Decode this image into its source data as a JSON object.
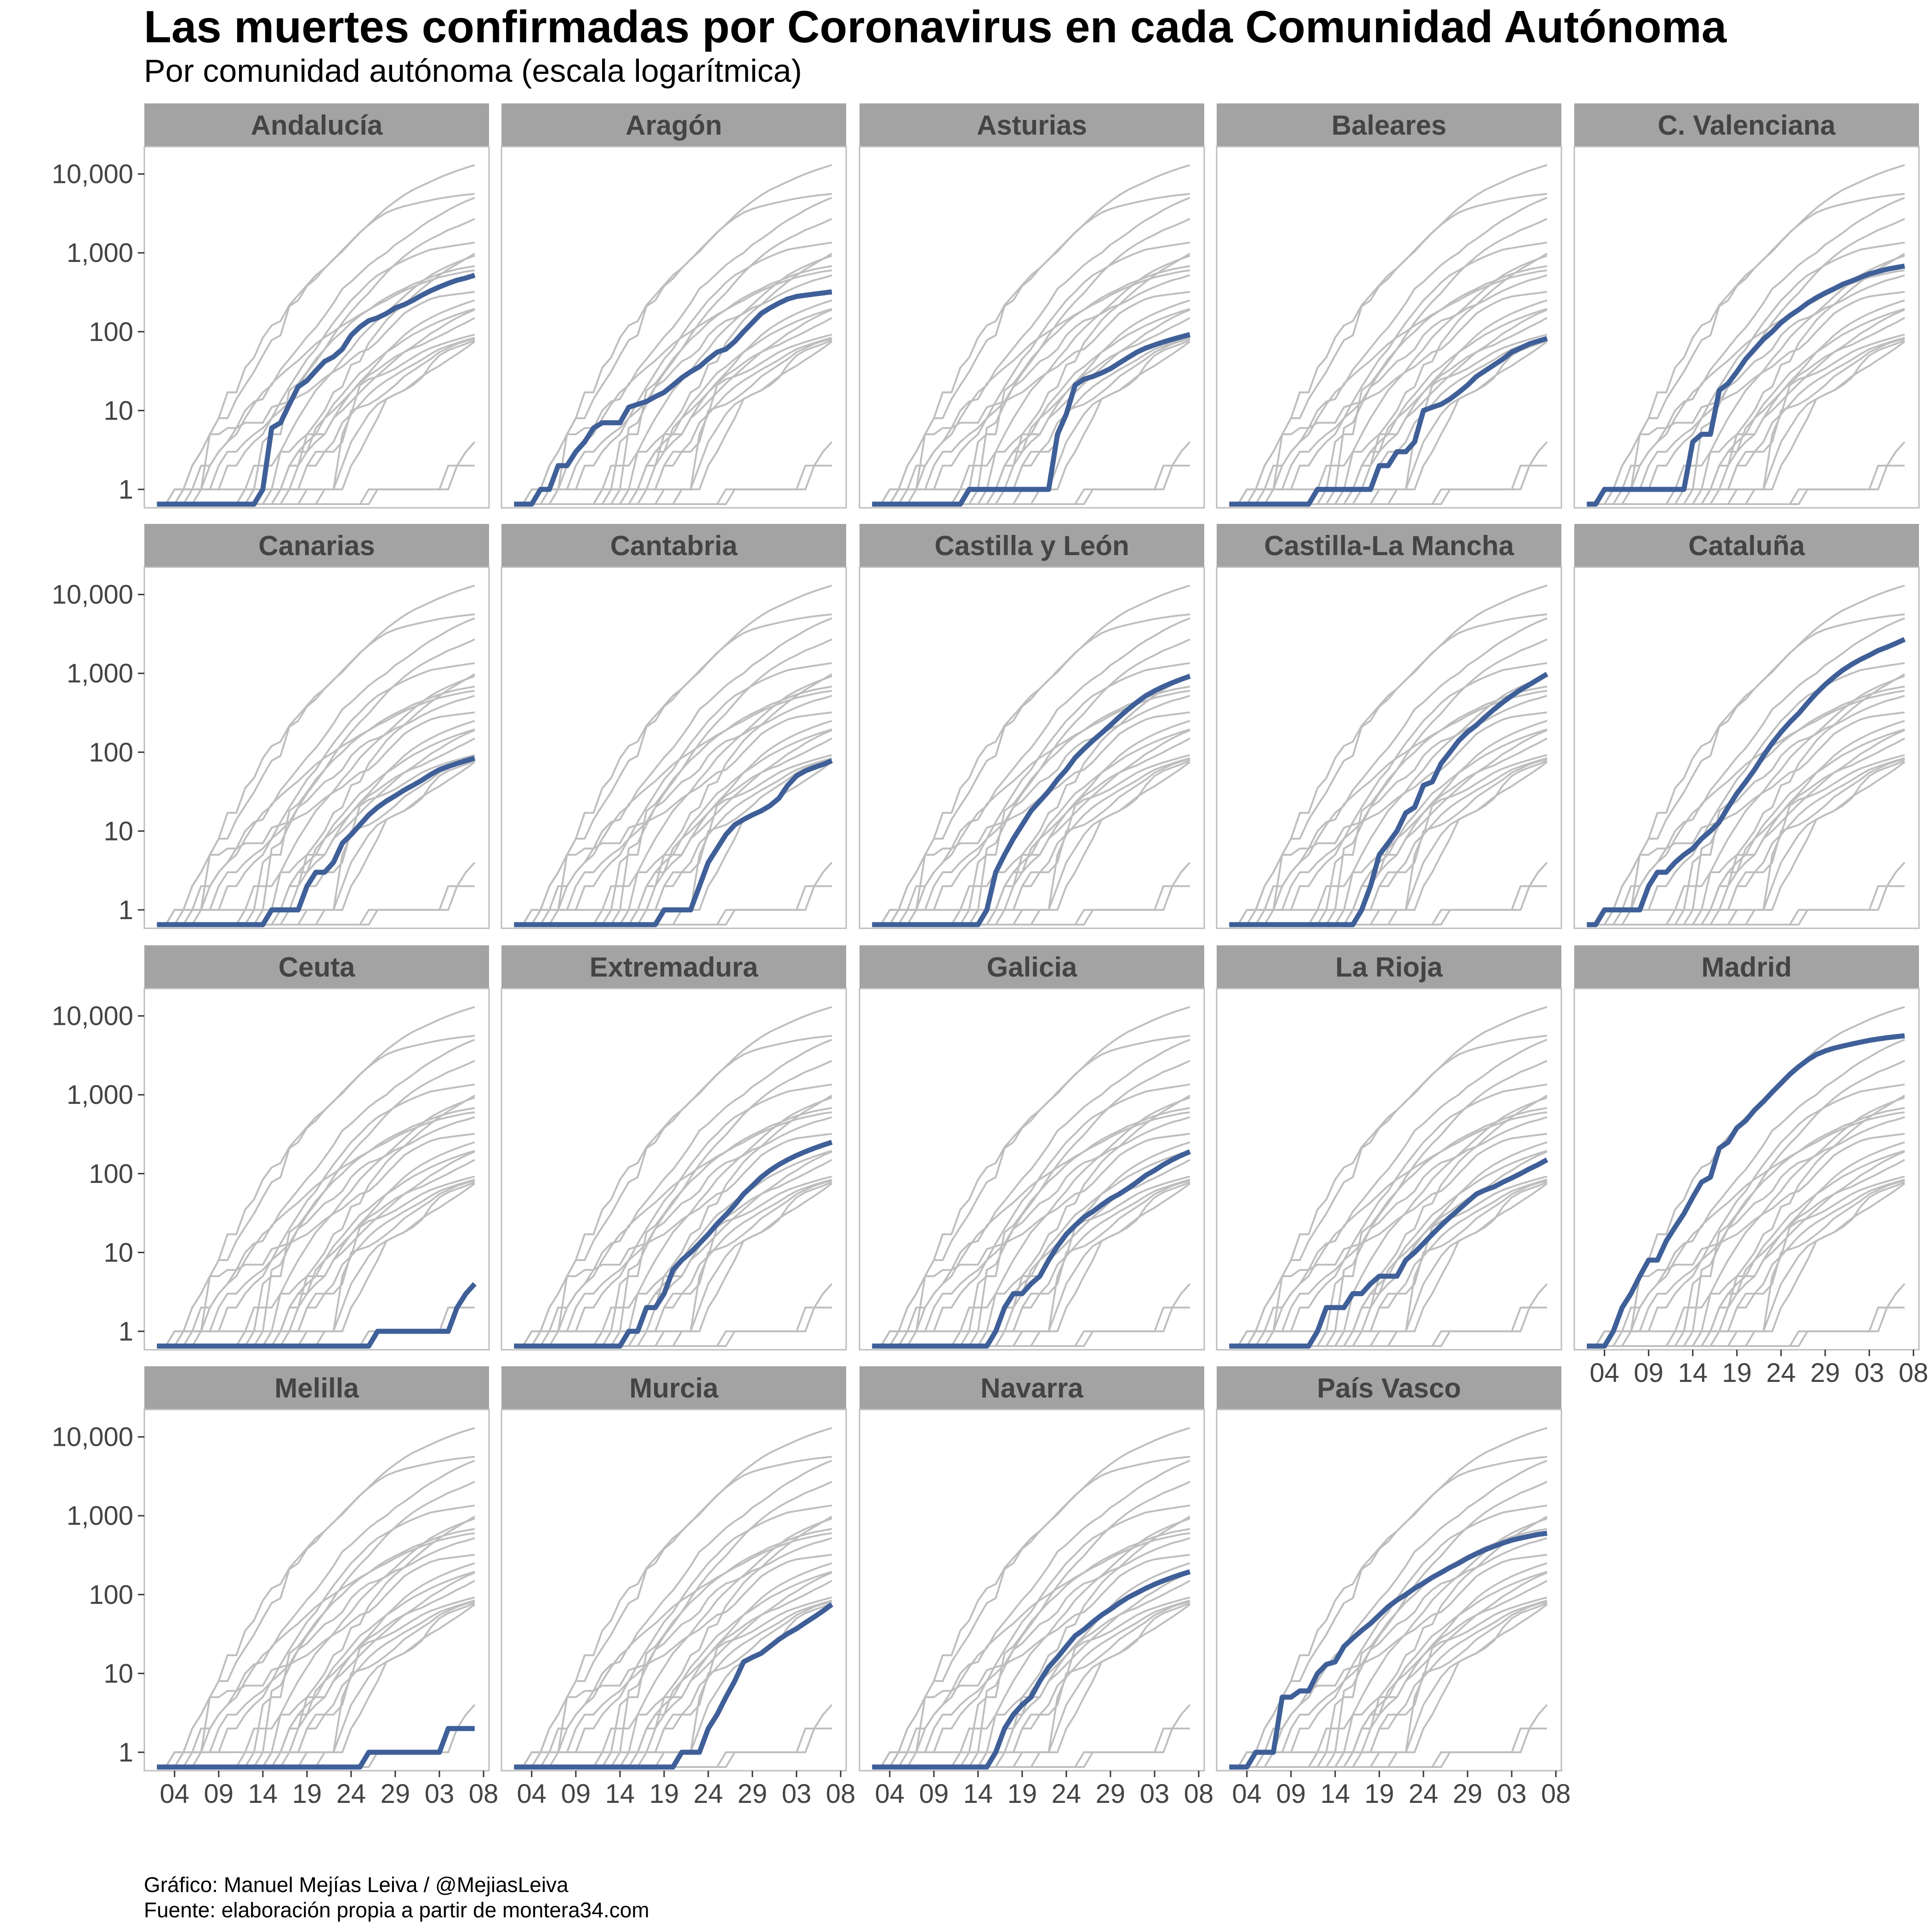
{
  "title": "Las muertes confirmadas por Coronavirus en cada Comunidad Autónoma",
  "subtitle": "Por comunidad autónoma (escala logarítmica)",
  "caption": {
    "line1": "Gráfico: Manuel Mejías Leiva / @MejiasLeiva",
    "line2": "Fuente: elaboración propia a partir de montera34.com"
  },
  "colors": {
    "highlight": "#3f5f98",
    "background_series": "#bebebe",
    "strip_background": "#a3a3a3",
    "strip_text": "#444444",
    "panel_border": "#bdbdbd"
  },
  "chart_data": {
    "type": "line",
    "layout": "facet-grid",
    "y_scale": "log10",
    "ylim": [
      0.65,
      20000
    ],
    "y_ticks": [
      1,
      10,
      100,
      1000,
      10000
    ],
    "y_tick_labels": [
      "1",
      "10",
      "100",
      "1,000",
      "10,000"
    ],
    "x": [
      "2020-03-02",
      "2020-03-03",
      "2020-03-04",
      "2020-03-05",
      "2020-03-06",
      "2020-03-07",
      "2020-03-08",
      "2020-03-09",
      "2020-03-10",
      "2020-03-11",
      "2020-03-12",
      "2020-03-13",
      "2020-03-14",
      "2020-03-15",
      "2020-03-16",
      "2020-03-17",
      "2020-03-18",
      "2020-03-19",
      "2020-03-20",
      "2020-03-21",
      "2020-03-22",
      "2020-03-23",
      "2020-03-24",
      "2020-03-25",
      "2020-03-26",
      "2020-03-27",
      "2020-03-28",
      "2020-03-29",
      "2020-03-30",
      "2020-03-31",
      "2020-04-01",
      "2020-04-02",
      "2020-04-03",
      "2020-04-04",
      "2020-04-05",
      "2020-04-06",
      "2020-04-07"
    ],
    "x_ticks": [
      "2020-03-04",
      "2020-03-09",
      "2020-03-14",
      "2020-03-19",
      "2020-03-24",
      "2020-03-29",
      "2020-04-03",
      "2020-04-08"
    ],
    "x_tick_labels": [
      "04",
      "09",
      "14",
      "19",
      "24",
      "29",
      "03",
      "08"
    ],
    "background_series": [
      {
        "values": [
          0,
          0,
          1,
          1,
          2,
          3,
          5,
          8,
          17,
          17,
          35,
          47,
          84,
          120,
          136,
          217,
          290,
          390,
          520,
          640,
          830,
          1040,
          1380,
          1800,
          2300,
          2950,
          3700,
          4500,
          5400,
          6300,
          7100,
          8000,
          9000,
          10000,
          11000,
          12000,
          13000
        ]
      },
      {
        "values": [
          0,
          0,
          0,
          0,
          1,
          1,
          2,
          3,
          4,
          5,
          8,
          12,
          17,
          21,
          33,
          45,
          62,
          86,
          113,
          160,
          230,
          350,
          430,
          550,
          700,
          850,
          1000,
          1270,
          1500,
          1800,
          2200,
          2600,
          3000,
          3500,
          4000,
          4500,
          5000
        ]
      },
      {
        "values": [
          0,
          0,
          0,
          0,
          0,
          1,
          1,
          1,
          2,
          2,
          3,
          4,
          5,
          8,
          13,
          20,
          30,
          45,
          60,
          90,
          130,
          180,
          250,
          320,
          420,
          520,
          600,
          700,
          800,
          900,
          1000,
          1100,
          1150,
          1200,
          1250,
          1300,
          1350
        ]
      }
    ],
    "panels": [
      {
        "name": "Andalucía",
        "values": [
          0,
          0,
          0,
          0,
          0,
          0,
          0,
          0,
          0,
          0,
          0,
          0,
          1,
          6,
          7,
          12,
          20,
          24,
          32,
          42,
          48,
          60,
          90,
          115,
          138,
          150,
          170,
          200,
          220,
          250,
          290,
          330,
          370,
          410,
          450,
          480,
          520
        ]
      },
      {
        "name": "Aragón",
        "values": [
          0,
          0,
          0,
          1,
          1,
          2,
          2,
          3,
          4,
          6,
          7,
          7,
          7,
          11,
          12,
          13,
          15,
          17,
          21,
          26,
          31,
          36,
          45,
          55,
          60,
          75,
          100,
          130,
          170,
          200,
          230,
          260,
          280,
          290,
          300,
          310,
          320
        ]
      },
      {
        "name": "Asturias",
        "values": [
          0,
          0,
          0,
          0,
          0,
          0,
          0,
          0,
          0,
          0,
          0,
          1,
          1,
          1,
          1,
          1,
          1,
          1,
          1,
          1,
          1,
          5,
          9,
          21,
          25,
          27,
          30,
          34,
          40,
          47,
          55,
          62,
          68,
          74,
          80,
          86,
          92
        ]
      },
      {
        "name": "Baleares",
        "values": [
          0,
          0,
          0,
          0,
          0,
          0,
          0,
          0,
          0,
          0,
          1,
          1,
          1,
          1,
          1,
          1,
          1,
          2,
          2,
          3,
          3,
          4,
          10,
          11,
          12,
          14,
          17,
          21,
          27,
          32,
          38,
          45,
          55,
          62,
          70,
          76,
          82
        ]
      },
      {
        "name": "C. Valenciana",
        "values": [
          0,
          0,
          1,
          1,
          1,
          1,
          1,
          1,
          1,
          1,
          1,
          1,
          4,
          5,
          5,
          18,
          22,
          31,
          45,
          60,
          80,
          100,
          130,
          160,
          190,
          230,
          270,
          310,
          350,
          400,
          440,
          490,
          540,
          580,
          620,
          650,
          680
        ]
      },
      {
        "name": "Canarias",
        "values": [
          0,
          0,
          0,
          0,
          0,
          0,
          0,
          0,
          0,
          0,
          0,
          0,
          0,
          1,
          1,
          1,
          1,
          2,
          3,
          3,
          4,
          7,
          9,
          12,
          16,
          20,
          24,
          28,
          33,
          38,
          44,
          52,
          60,
          66,
          72,
          78,
          84
        ]
      },
      {
        "name": "Cantabria",
        "values": [
          0,
          0,
          0,
          0,
          0,
          0,
          0,
          0,
          0,
          0,
          0,
          0,
          0,
          0,
          0,
          0,
          0,
          1,
          1,
          1,
          1,
          2,
          4,
          6,
          9,
          12,
          14,
          16,
          18,
          21,
          26,
          38,
          50,
          58,
          64,
          70,
          78
        ]
      },
      {
        "name": "Castilla y León",
        "values": [
          0,
          0,
          0,
          0,
          0,
          0,
          0,
          0,
          0,
          0,
          0,
          0,
          0,
          1,
          3,
          5,
          8,
          12,
          18,
          24,
          32,
          45,
          60,
          85,
          110,
          140,
          175,
          220,
          280,
          350,
          430,
          520,
          600,
          680,
          760,
          840,
          920
        ]
      },
      {
        "name": "Castilla-La Mancha",
        "values": [
          0,
          0,
          0,
          0,
          0,
          0,
          0,
          0,
          0,
          0,
          0,
          0,
          0,
          0,
          0,
          1,
          2,
          5,
          7,
          10,
          17,
          20,
          38,
          42,
          72,
          100,
          140,
          180,
          220,
          280,
          350,
          430,
          520,
          620,
          720,
          840,
          980
        ]
      },
      {
        "name": "Cataluña",
        "values": [
          0,
          0,
          1,
          1,
          1,
          1,
          1,
          2,
          3,
          3,
          4,
          5,
          6,
          8,
          10,
          13,
          20,
          30,
          42,
          60,
          90,
          130,
          180,
          240,
          310,
          420,
          560,
          720,
          900,
          1100,
          1300,
          1500,
          1700,
          1950,
          2150,
          2400,
          2700
        ]
      },
      {
        "name": "Ceuta",
        "values": [
          0,
          0,
          0,
          0,
          0,
          0,
          0,
          0,
          0,
          0,
          0,
          0,
          0,
          0,
          0,
          0,
          0,
          0,
          0,
          0,
          0,
          0,
          0,
          0,
          0,
          1,
          1,
          1,
          1,
          1,
          1,
          1,
          1,
          1,
          2,
          3,
          4
        ]
      },
      {
        "name": "Extremadura",
        "values": [
          0,
          0,
          0,
          0,
          0,
          0,
          0,
          0,
          0,
          0,
          0,
          0,
          0,
          1,
          1,
          2,
          2,
          3,
          6,
          8,
          10,
          13,
          17,
          23,
          30,
          40,
          55,
          70,
          90,
          110,
          130,
          150,
          170,
          190,
          210,
          230,
          250
        ]
      },
      {
        "name": "Galicia",
        "values": [
          0,
          0,
          0,
          0,
          0,
          0,
          0,
          0,
          0,
          0,
          0,
          0,
          0,
          0,
          1,
          2,
          3,
          3,
          4,
          5,
          8,
          12,
          17,
          22,
          28,
          33,
          40,
          48,
          55,
          65,
          78,
          95,
          110,
          130,
          150,
          170,
          190
        ]
      },
      {
        "name": "La Rioja",
        "values": [
          0,
          0,
          0,
          0,
          0,
          0,
          0,
          0,
          0,
          0,
          1,
          2,
          2,
          2,
          3,
          3,
          4,
          5,
          5,
          5,
          8,
          10,
          13,
          17,
          22,
          28,
          35,
          44,
          55,
          62,
          68,
          78,
          88,
          100,
          115,
          130,
          150
        ]
      },
      {
        "name": "Madrid",
        "values": [
          0,
          0,
          0,
          1,
          2,
          3,
          5,
          8,
          8,
          14,
          21,
          31,
          50,
          78,
          90,
          210,
          250,
          380,
          470,
          640,
          820,
          1080,
          1400,
          1820,
          2270,
          2760,
          3240,
          3600,
          3900,
          4150,
          4400,
          4650,
          4900,
          5100,
          5300,
          5450,
          5600
        ]
      },
      {
        "name": "Melilla",
        "values": [
          0,
          0,
          0,
          0,
          0,
          0,
          0,
          0,
          0,
          0,
          0,
          0,
          0,
          0,
          0,
          0,
          0,
          0,
          0,
          0,
          0,
          0,
          0,
          0,
          1,
          1,
          1,
          1,
          1,
          1,
          1,
          1,
          1,
          2,
          2,
          2,
          2
        ]
      },
      {
        "name": "Murcia",
        "values": [
          0,
          0,
          0,
          0,
          0,
          0,
          0,
          0,
          0,
          0,
          0,
          0,
          0,
          0,
          0,
          0,
          0,
          0,
          0,
          1,
          1,
          1,
          2,
          3,
          5,
          8,
          14,
          16,
          18,
          22,
          27,
          32,
          37,
          44,
          52,
          62,
          75
        ]
      },
      {
        "name": "Navarra",
        "values": [
          0,
          0,
          0,
          0,
          0,
          0,
          0,
          0,
          0,
          0,
          0,
          0,
          0,
          0,
          1,
          2,
          3,
          4,
          5,
          8,
          12,
          16,
          22,
          30,
          36,
          45,
          55,
          65,
          78,
          92,
          105,
          120,
          135,
          150,
          165,
          180,
          195
        ]
      },
      {
        "name": "País Vasco",
        "values": [
          0,
          0,
          0,
          1,
          1,
          1,
          5,
          5,
          6,
          6,
          10,
          13,
          14,
          22,
          28,
          35,
          43,
          55,
          70,
          85,
          100,
          120,
          140,
          165,
          190,
          220,
          250,
          290,
          330,
          370,
          410,
          450,
          490,
          520,
          550,
          580,
          600
        ]
      }
    ]
  }
}
